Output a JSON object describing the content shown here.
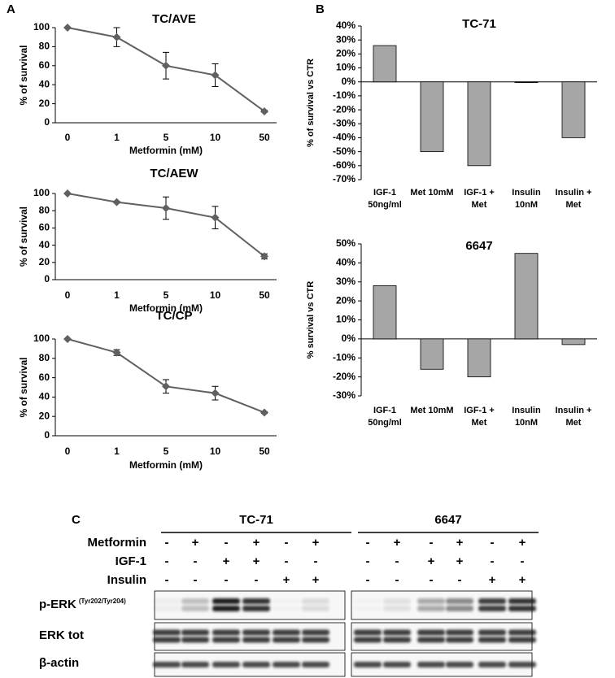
{
  "panels": [
    "A",
    "B",
    "C"
  ],
  "chart_data": [
    {
      "type": "line",
      "title": "TC/AVE",
      "xlabel": "Metformin (mM)",
      "ylabel": "% of survival",
      "categories": [
        "0",
        "1",
        "5",
        "10",
        "50"
      ],
      "values": [
        100,
        90,
        60,
        50,
        12
      ],
      "errors": [
        0,
        10,
        14,
        12,
        1
      ],
      "color": "#606060",
      "ylim": [
        0,
        100
      ],
      "yticks": [
        0,
        20,
        40,
        60,
        80,
        100
      ]
    },
    {
      "type": "line",
      "title": "TC/AEW",
      "xlabel": "Metformin (mM)",
      "ylabel": "% of survival",
      "categories": [
        "0",
        "1",
        "5",
        "10",
        "50"
      ],
      "values": [
        100,
        90,
        83,
        72,
        27
      ],
      "errors": [
        0,
        1,
        13,
        13,
        3
      ],
      "color": "#606060",
      "ylim": [
        0,
        100
      ],
      "yticks": [
        0,
        20,
        40,
        60,
        80,
        100
      ]
    },
    {
      "type": "line",
      "title": "TC/CP",
      "xlabel": "Metformin (mM)",
      "ylabel": "% of survival",
      "categories": [
        "0",
        "1",
        "5",
        "10",
        "50"
      ],
      "values": [
        100,
        86,
        51,
        44,
        24
      ],
      "errors": [
        0,
        3,
        7,
        7,
        1
      ],
      "color": "#606060",
      "ylim": [
        0,
        100
      ],
      "yticks": [
        0,
        20,
        40,
        60,
        80,
        100
      ]
    },
    {
      "type": "bar",
      "title": "TC-71",
      "ylabel": "% of survival vs CTR",
      "categories": [
        [
          "IGF-1",
          "50ng/ml"
        ],
        [
          "Met 10mM"
        ],
        [
          "IGF-1 +",
          "Met"
        ],
        [
          "Insulin",
          "10nM"
        ],
        [
          "Insulin +",
          "Met"
        ]
      ],
      "values": [
        26,
        -50,
        -60,
        -0.5,
        -40
      ],
      "color": "#a6a6a6",
      "ylim": [
        -70,
        40
      ],
      "yticks": [
        {
          "value": -70,
          "label": "-70%"
        },
        {
          "value": -60,
          "label": "-60%"
        },
        {
          "value": -50,
          "label": "-50%"
        },
        {
          "value": -40,
          "label": "-40%"
        },
        {
          "value": -30,
          "label": "-30%"
        },
        {
          "value": -20,
          "label": "-20%"
        },
        {
          "value": -10,
          "label": "-10%"
        },
        {
          "value": 0,
          "label": "0%"
        },
        {
          "value": 10,
          "label": "10%"
        },
        {
          "value": 20,
          "label": "20%"
        },
        {
          "value": 30,
          "label": "30%"
        },
        {
          "value": 40,
          "label": "40%"
        }
      ]
    },
    {
      "type": "bar",
      "title": "6647",
      "ylabel": "% survival vs CTR",
      "categories": [
        [
          "IGF-1",
          "50ng/ml"
        ],
        [
          "Met 10mM"
        ],
        [
          "IGF-1 +",
          "Met"
        ],
        [
          "Insulin",
          "10nM"
        ],
        [
          "Insulin +",
          "Met"
        ]
      ],
      "values": [
        28,
        -16,
        -20,
        45,
        -3
      ],
      "color": "#a6a6a6",
      "ylim": [
        -30,
        50
      ],
      "yticks": [
        {
          "value": -30,
          "label": "-30%"
        },
        {
          "value": -20,
          "label": "-20%"
        },
        {
          "value": -10,
          "label": "-10%"
        },
        {
          "value": 0,
          "label": "0%"
        },
        {
          "value": 10,
          "label": "10%"
        },
        {
          "value": 20,
          "label": "20%"
        },
        {
          "value": 30,
          "label": "30%"
        },
        {
          "value": 40,
          "label": "40%"
        },
        {
          "value": 50,
          "label": "50%"
        }
      ]
    }
  ],
  "blot": {
    "treatments": [
      "Metformin",
      "IGF-1",
      "Insulin"
    ],
    "groups": [
      {
        "name": "TC-71",
        "signs": [
          [
            "-",
            "+",
            "-",
            "+",
            "-",
            "+"
          ],
          [
            "-",
            "-",
            "+",
            "+",
            "-",
            "-"
          ],
          [
            "-",
            "-",
            "-",
            "-",
            "+",
            "+"
          ]
        ]
      },
      {
        "name": "6647",
        "signs": [
          [
            "-",
            "+",
            "-",
            "+",
            "-",
            "+"
          ],
          [
            "-",
            "-",
            "+",
            "+",
            "-",
            "-"
          ],
          [
            "-",
            "-",
            "-",
            "-",
            "+",
            "+"
          ]
        ]
      }
    ],
    "rows": [
      {
        "name": "p-ERK",
        "note": "(Tyr202/Tyr204)"
      },
      {
        "name": "ERK tot"
      },
      {
        "name": "β-actin"
      }
    ]
  }
}
